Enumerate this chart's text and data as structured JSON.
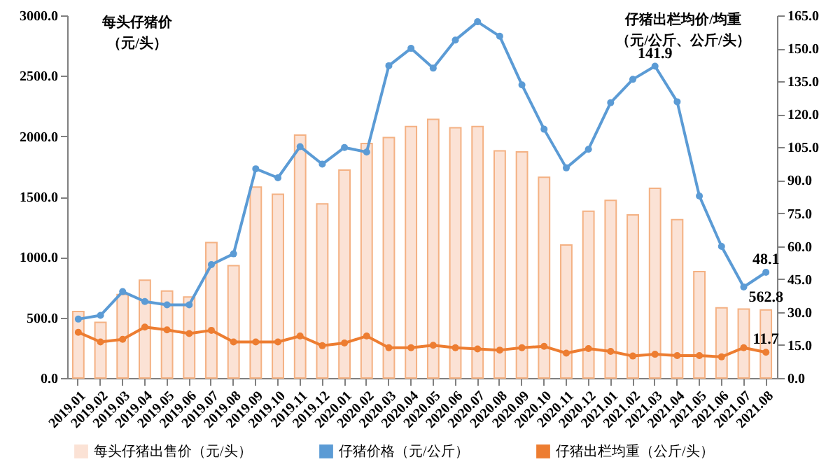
{
  "chart_data": {
    "type": "bar",
    "ylabel": "每头仔猪价（元/头）",
    "y2label": "仔猪出栏均价/均重（元/公斤、公斤/头）",
    "categories": [
      "2019.01",
      "2019.02",
      "2019.03",
      "2019.04",
      "2019.05",
      "2019.06",
      "2019.07",
      "2019.08",
      "2019.09",
      "2019.10",
      "2019.11",
      "2019.12",
      "2020.01",
      "2020.02",
      "2020.03",
      "2020.04",
      "2020.05",
      "2020.06",
      "2020.07",
      "2020.08",
      "2020.09",
      "2020.10",
      "2020.11",
      "2020.12",
      "2021.01",
      "2021.02",
      "2021.03",
      "2021.04",
      "2021.05",
      "2021.06",
      "2021.07",
      "2021.08"
    ],
    "series": [
      {
        "name": "每头仔猪出售价（元/头）",
        "color": "#fbe2d5",
        "values": [
          550,
          460,
          690,
          810,
          720,
          670,
          1120,
          930,
          1580,
          1520,
          2010,
          1440,
          1720,
          1940,
          1990,
          2080,
          2140,
          2070,
          2080,
          1880,
          1870,
          1660,
          1100,
          1380,
          1470,
          1350,
          1570,
          1310,
          880,
          580,
          570,
          562.8
        ]
      },
      {
        "name": "仔猪价格（元/公斤）",
        "type": "line",
        "axis": "y2",
        "color": "#5b9bd5",
        "values": [
          26.8,
          28.5,
          39.3,
          34.8,
          33.3,
          33.3,
          51.6,
          56.5,
          95.2,
          91.1,
          105.3,
          97.3,
          104.9,
          102.8,
          142.1,
          150.0,
          141.0,
          153.8,
          162.1,
          155.5,
          133.4,
          113.2,
          95.6,
          104.1,
          125.3,
          135.9,
          141.9,
          125.7,
          82.8,
          59.9,
          41.4,
          48.1
        ]
      },
      {
        "name": "仔猪出栏均重（公斤/头）",
        "type": "line",
        "axis": "y2",
        "color": "#ed7d31",
        "values": [
          20.8,
          16.4,
          17.6,
          23.2,
          21.9,
          20.2,
          21.7,
          16.4,
          16.4,
          16.4,
          19.1,
          14.7,
          15.9,
          19.1,
          13.8,
          13.8,
          14.9,
          13.8,
          13.2,
          12.7,
          13.8,
          14.4,
          11.3,
          13.4,
          12.1,
          10.0,
          10.8,
          10.2,
          10.2,
          9.6,
          13.8,
          11.7
        ]
      }
    ],
    "ylim": [
      0,
      3000
    ],
    "yticks": [
      {
        "value": 0,
        "label": "0.0"
      },
      {
        "value": 500,
        "label": "500.0"
      },
      {
        "value": 1000,
        "label": "1000.0"
      },
      {
        "value": 1500,
        "label": "1500.0"
      },
      {
        "value": 2000,
        "label": "2000.0"
      },
      {
        "value": 2500,
        "label": "2500.0"
      },
      {
        "value": 3000,
        "label": "3000.0"
      }
    ],
    "y2lim": [
      0,
      165
    ],
    "y2ticks": [
      {
        "value": 0,
        "label": "0.0"
      },
      {
        "value": 15,
        "label": "15.0"
      },
      {
        "value": 30,
        "label": "30.0"
      },
      {
        "value": 45,
        "label": "45.0"
      },
      {
        "value": 60,
        "label": "60.0"
      },
      {
        "value": 75,
        "label": "75.0"
      },
      {
        "value": 90,
        "label": "90.0"
      },
      {
        "value": 105,
        "label": "105.0"
      },
      {
        "value": 120,
        "label": "120.0"
      },
      {
        "value": 135,
        "label": "135.0"
      },
      {
        "value": 150,
        "label": "150.0"
      },
      {
        "value": 165,
        "label": "165.0"
      }
    ],
    "annotations": [
      "141.9",
      "48.1",
      {
        "text": "562.8",
        "x": "2021.08",
        "y": 562.8
      },
      "11.7"
    ],
    "marker": "circle",
    "legend": "bottom",
    "grid": false
  }
}
